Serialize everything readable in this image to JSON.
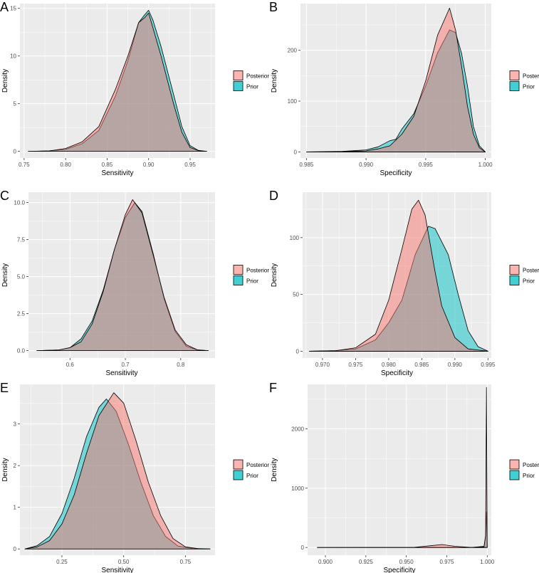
{
  "colors": {
    "posterior": "#F8766D",
    "prior": "#00BFC4",
    "panel_bg": "#EBEBEB",
    "grid": "#FFFFFF"
  },
  "chart_data": [
    {
      "panel": "A",
      "type": "area",
      "xlabel": "Sensitivity",
      "ylabel": "Density",
      "xlim": [
        0.745,
        0.98
      ],
      "ylim": [
        -0.7,
        15.5
      ],
      "xticks": [
        0.75,
        0.8,
        0.85,
        0.9,
        0.95
      ],
      "xtick_labels": [
        "0.75",
        "0.80",
        "0.85",
        "0.90",
        "0.95"
      ],
      "yticks": [
        0,
        5,
        10,
        15
      ],
      "ytick_labels": [
        "0",
        "5",
        "10",
        "15"
      ],
      "legend": {
        "position": "right",
        "entries": [
          "Posterior",
          "Prior"
        ]
      },
      "series": [
        {
          "name": "Prior",
          "points": [
            [
              0.755,
              0
            ],
            [
              0.78,
              0.05
            ],
            [
              0.8,
              0.2
            ],
            [
              0.82,
              0.8
            ],
            [
              0.84,
              2.2
            ],
            [
              0.86,
              5.8
            ],
            [
              0.875,
              9.5
            ],
            [
              0.888,
              13.5
            ],
            [
              0.895,
              14.3
            ],
            [
              0.9,
              14.8
            ],
            [
              0.905,
              13.8
            ],
            [
              0.915,
              11
            ],
            [
              0.93,
              6
            ],
            [
              0.94,
              2.6
            ],
            [
              0.95,
              0.6
            ],
            [
              0.96,
              0.1
            ],
            [
              0.97,
              0
            ]
          ]
        },
        {
          "name": "Posterior",
          "points": [
            [
              0.755,
              0
            ],
            [
              0.78,
              0.05
            ],
            [
              0.8,
              0.3
            ],
            [
              0.82,
              1.0
            ],
            [
              0.84,
              2.6
            ],
            [
              0.86,
              6.5
            ],
            [
              0.875,
              10
            ],
            [
              0.888,
              13.5
            ],
            [
              0.895,
              14
            ],
            [
              0.9,
              14.5
            ],
            [
              0.905,
              13
            ],
            [
              0.915,
              10
            ],
            [
              0.93,
              5
            ],
            [
              0.94,
              2
            ],
            [
              0.95,
              0.4
            ],
            [
              0.96,
              0.08
            ],
            [
              0.97,
              0
            ]
          ]
        }
      ]
    },
    {
      "panel": "B",
      "type": "area",
      "xlabel": "Specificity",
      "ylabel": "Density",
      "xlim": [
        0.9845,
        1.0005
      ],
      "ylim": [
        -12,
        292
      ],
      "xticks": [
        0.985,
        0.99,
        0.995,
        1.0
      ],
      "xtick_labels": [
        "0.985",
        "0.990",
        "0.995",
        "1.000"
      ],
      "yticks": [
        0,
        100,
        200
      ],
      "ytick_labels": [
        "0",
        "100",
        "200"
      ],
      "legend": {
        "position": "right",
        "entries": [
          "Posterior",
          "Prior"
        ]
      },
      "series": [
        {
          "name": "Prior",
          "points": [
            [
              0.985,
              0
            ],
            [
              0.988,
              1
            ],
            [
              0.99,
              4
            ],
            [
              0.991,
              10
            ],
            [
              0.992,
              22
            ],
            [
              0.9925,
              25
            ],
            [
              0.993,
              45
            ],
            [
              0.994,
              75
            ],
            [
              0.995,
              130
            ],
            [
              0.996,
              195
            ],
            [
              0.997,
              240
            ],
            [
              0.9975,
              235
            ],
            [
              0.998,
              195
            ],
            [
              0.9985,
              130
            ],
            [
              0.999,
              50
            ],
            [
              0.9995,
              12
            ],
            [
              1.0,
              0
            ]
          ]
        },
        {
          "name": "Posterior",
          "points": [
            [
              0.985,
              0
            ],
            [
              0.988,
              0.5
            ],
            [
              0.99,
              2
            ],
            [
              0.991,
              6
            ],
            [
              0.992,
              12
            ],
            [
              0.993,
              35
            ],
            [
              0.994,
              70
            ],
            [
              0.995,
              140
            ],
            [
              0.996,
              230
            ],
            [
              0.997,
              283
            ],
            [
              0.9975,
              240
            ],
            [
              0.998,
              170
            ],
            [
              0.9985,
              90
            ],
            [
              0.999,
              35
            ],
            [
              0.9995,
              8
            ],
            [
              1.0,
              0
            ]
          ]
        }
      ]
    },
    {
      "panel": "C",
      "type": "area",
      "xlabel": "Sensitivity",
      "ylabel": "Density",
      "xlim": [
        0.525,
        0.862
      ],
      "ylim": [
        -0.5,
        10.7
      ],
      "xticks": [
        0.6,
        0.7,
        0.8
      ],
      "xtick_labels": [
        "0.6",
        "0.7",
        "0.8"
      ],
      "yticks": [
        0,
        2.5,
        5,
        7.5,
        10
      ],
      "ytick_labels": [
        "0.0",
        "2.5",
        "5.0",
        "7.5",
        "10.0"
      ],
      "legend": {
        "position": "right",
        "entries": [
          "Posterior",
          "Prior"
        ]
      },
      "series": [
        {
          "name": "Prior",
          "points": [
            [
              0.54,
              0
            ],
            [
              0.58,
              0.05
            ],
            [
              0.6,
              0.2
            ],
            [
              0.62,
              0.8
            ],
            [
              0.64,
              2.0
            ],
            [
              0.66,
              4.1
            ],
            [
              0.68,
              6.8
            ],
            [
              0.7,
              9.0
            ],
            [
              0.717,
              10.0
            ],
            [
              0.73,
              9.4
            ],
            [
              0.75,
              6.6
            ],
            [
              0.77,
              3.5
            ],
            [
              0.79,
              1.3
            ],
            [
              0.81,
              0.3
            ],
            [
              0.83,
              0.05
            ],
            [
              0.85,
              0
            ]
          ]
        },
        {
          "name": "Posterior",
          "points": [
            [
              0.54,
              0
            ],
            [
              0.58,
              0.05
            ],
            [
              0.6,
              0.2
            ],
            [
              0.62,
              0.6
            ],
            [
              0.64,
              1.8
            ],
            [
              0.66,
              4
            ],
            [
              0.68,
              6.8
            ],
            [
              0.7,
              9.2
            ],
            [
              0.713,
              10.2
            ],
            [
              0.73,
              9.3
            ],
            [
              0.75,
              6.5
            ],
            [
              0.77,
              3.6
            ],
            [
              0.79,
              1.4
            ],
            [
              0.81,
              0.4
            ],
            [
              0.83,
              0.06
            ],
            [
              0.85,
              0
            ]
          ]
        }
      ]
    },
    {
      "panel": "D",
      "type": "area",
      "xlabel": "Specificity",
      "ylabel": "Density",
      "xlim": [
        0.967,
        0.9955
      ],
      "ylim": [
        -6,
        140
      ],
      "xticks": [
        0.97,
        0.975,
        0.98,
        0.985,
        0.99,
        0.995
      ],
      "xtick_labels": [
        "0.970",
        "0.975",
        "0.980",
        "0.985",
        "0.990",
        "0.995"
      ],
      "yticks": [
        0,
        50,
        100
      ],
      "ytick_labels": [
        "0",
        "50",
        "100"
      ],
      "legend": {
        "position": "right",
        "entries": [
          "Posterior",
          "Prior"
        ]
      },
      "series": [
        {
          "name": "Prior",
          "points": [
            [
              0.968,
              0
            ],
            [
              0.972,
              0.5
            ],
            [
              0.975,
              2
            ],
            [
              0.978,
              10
            ],
            [
              0.98,
              25
            ],
            [
              0.982,
              45
            ],
            [
              0.984,
              85
            ],
            [
              0.986,
              110
            ],
            [
              0.987,
              108
            ],
            [
              0.989,
              85
            ],
            [
              0.9905,
              50
            ],
            [
              0.992,
              18
            ],
            [
              0.9935,
              4
            ],
            [
              0.995,
              0
            ]
          ]
        },
        {
          "name": "Posterior",
          "points": [
            [
              0.968,
              0
            ],
            [
              0.972,
              0.5
            ],
            [
              0.975,
              3
            ],
            [
              0.978,
              15
            ],
            [
              0.98,
              45
            ],
            [
              0.982,
              90
            ],
            [
              0.9835,
              125
            ],
            [
              0.9845,
              133
            ],
            [
              0.9855,
              120
            ],
            [
              0.987,
              70
            ],
            [
              0.988,
              40
            ],
            [
              0.99,
              12
            ],
            [
              0.992,
              2
            ],
            [
              0.995,
              0
            ]
          ]
        }
      ]
    },
    {
      "panel": "E",
      "type": "area",
      "xlabel": "Sensitivity",
      "ylabel": "Density",
      "xlim": [
        0.08,
        0.87
      ],
      "ylim": [
        -0.15,
        3.95
      ],
      "xticks": [
        0.25,
        0.5,
        0.75
      ],
      "xtick_labels": [
        "0.25",
        "0.50",
        "0.75"
      ],
      "yticks": [
        0,
        1,
        2,
        3
      ],
      "ytick_labels": [
        "0",
        "1",
        "2",
        "3"
      ],
      "legend": {
        "position": "right",
        "entries": [
          "Posterior",
          "Prior"
        ]
      },
      "series": [
        {
          "name": "Prior",
          "points": [
            [
              0.1,
              0
            ],
            [
              0.15,
              0.08
            ],
            [
              0.2,
              0.3
            ],
            [
              0.25,
              0.85
            ],
            [
              0.3,
              1.7
            ],
            [
              0.35,
              2.7
            ],
            [
              0.4,
              3.4
            ],
            [
              0.43,
              3.6
            ],
            [
              0.47,
              3.3
            ],
            [
              0.52,
              2.5
            ],
            [
              0.57,
              1.6
            ],
            [
              0.62,
              0.8
            ],
            [
              0.67,
              0.3
            ],
            [
              0.72,
              0.07
            ],
            [
              0.78,
              0.01
            ],
            [
              0.85,
              0
            ]
          ]
        },
        {
          "name": "Posterior",
          "points": [
            [
              0.1,
              0
            ],
            [
              0.15,
              0.05
            ],
            [
              0.2,
              0.2
            ],
            [
              0.25,
              0.6
            ],
            [
              0.3,
              1.3
            ],
            [
              0.35,
              2.3
            ],
            [
              0.4,
              3.2
            ],
            [
              0.46,
              3.75
            ],
            [
              0.5,
              3.5
            ],
            [
              0.55,
              2.6
            ],
            [
              0.6,
              1.6
            ],
            [
              0.65,
              0.8
            ],
            [
              0.7,
              0.25
            ],
            [
              0.75,
              0.05
            ],
            [
              0.8,
              0.01
            ],
            [
              0.85,
              0
            ]
          ]
        }
      ]
    },
    {
      "panel": "F",
      "type": "area",
      "xlabel": "Specificity",
      "ylabel": "Density",
      "xlim": [
        0.889,
        1.0025
      ],
      "ylim": [
        -130,
        2750
      ],
      "xticks": [
        0.9,
        0.925,
        0.95,
        0.975,
        1.0
      ],
      "xtick_labels": [
        "0.900",
        "0.925",
        "0.950",
        "0.975",
        "1.000"
      ],
      "yticks": [
        0,
        1000,
        2000
      ],
      "ytick_labels": [
        "0",
        "1000",
        "2000"
      ],
      "legend": {
        "position": "right",
        "entries": [
          "Posterior",
          "Prior"
        ]
      },
      "series": [
        {
          "name": "Prior",
          "points": [
            [
              0.895,
              0
            ],
            [
              0.99,
              0
            ],
            [
              0.998,
              20
            ],
            [
              0.999,
              200
            ],
            [
              0.9995,
              600
            ],
            [
              1.0,
              0
            ]
          ]
        },
        {
          "name": "Posterior",
          "points": [
            [
              0.895,
              0
            ],
            [
              0.955,
              3
            ],
            [
              0.965,
              30
            ],
            [
              0.972,
              50
            ],
            [
              0.98,
              20
            ],
            [
              0.99,
              2
            ],
            [
              0.998,
              10
            ],
            [
              0.999,
              200
            ],
            [
              0.9995,
              2700
            ],
            [
              1.0,
              0
            ]
          ]
        }
      ]
    }
  ]
}
